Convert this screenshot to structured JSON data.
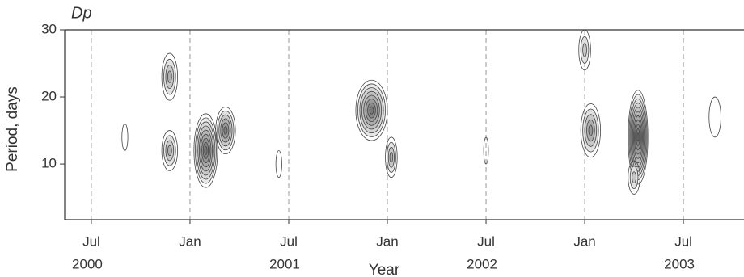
{
  "chart_data": {
    "type": "contour",
    "title": "Dp",
    "xlabel": "Year",
    "ylabel": "Period, days",
    "xlim": [
      2000.365,
      2003.807
    ],
    "ylim": [
      1.7,
      30
    ],
    "yticks": [
      10,
      20,
      30
    ],
    "xticks": [
      {
        "value": 2000.5,
        "label": "Jul"
      },
      {
        "value": 2001.0,
        "label": "Jan"
      },
      {
        "value": 2001.5,
        "label": "Jul"
      },
      {
        "value": 2002.0,
        "label": "Jan"
      },
      {
        "value": 2002.5,
        "label": "Jul"
      },
      {
        "value": 2003.0,
        "label": "Jan"
      },
      {
        "value": 2003.5,
        "label": "Jul"
      }
    ],
    "year_ticks": [
      {
        "value": 2000.5,
        "label": "2000"
      },
      {
        "value": 2001.5,
        "label": "2001"
      },
      {
        "value": 2002.5,
        "label": "2002"
      },
      {
        "value": 2003.5,
        "label": "2003"
      }
    ],
    "grid": true,
    "color": "#444444",
    "peaks": [
      {
        "x": 2000.897,
        "period": 23,
        "width": 0.04,
        "height": 3.5,
        "levels": 4
      },
      {
        "x": 2000.897,
        "period": 12,
        "width": 0.04,
        "height": 3,
        "levels": 4
      },
      {
        "x": 2001.08,
        "period": 12,
        "width": 0.06,
        "height": 5.5,
        "levels": 9
      },
      {
        "x": 2001.18,
        "period": 15,
        "width": 0.05,
        "height": 3.5,
        "levels": 6
      },
      {
        "x": 2001.92,
        "period": 18,
        "width": 0.08,
        "height": 4.5,
        "levels": 8
      },
      {
        "x": 2002.02,
        "period": 11,
        "width": 0.03,
        "height": 3,
        "levels": 4
      },
      {
        "x": 2003.03,
        "period": 15,
        "width": 0.05,
        "height": 4,
        "levels": 5
      },
      {
        "x": 2003.27,
        "period": 14,
        "width": 0.05,
        "height": 7,
        "levels": 11
      },
      {
        "x": 2003.25,
        "period": 8,
        "width": 0.03,
        "height": 2.5,
        "levels": 3
      },
      {
        "x": 2003.0,
        "period": 27,
        "width": 0.03,
        "height": 3,
        "levels": 3
      },
      {
        "x": 2000.67,
        "period": 14,
        "width": 0.015,
        "height": 2,
        "levels": 1
      },
      {
        "x": 2001.45,
        "period": 10,
        "width": 0.015,
        "height": 2,
        "levels": 1
      },
      {
        "x": 2002.5,
        "period": 12,
        "width": 0.012,
        "height": 2,
        "levels": 1
      },
      {
        "x": 2003.66,
        "period": 17,
        "width": 0.03,
        "height": 3,
        "levels": 1
      }
    ]
  }
}
